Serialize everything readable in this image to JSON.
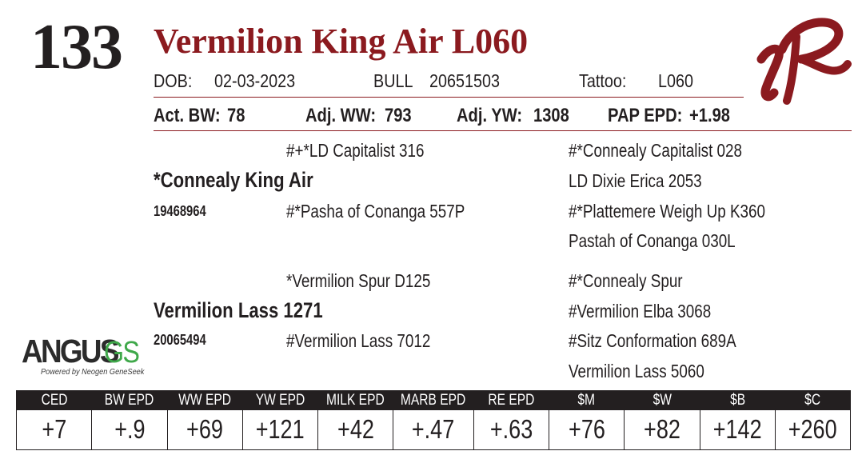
{
  "lot": "133",
  "name": "Vermilion King Air L060",
  "dob_label": "DOB:",
  "dob": "02-03-2023",
  "sex_label": "BULL",
  "registration": "20651503",
  "tattoo_label": "Tattoo:",
  "tattoo": "L060",
  "act_bw_label": "Act. BW:",
  "act_bw": "78",
  "adj_ww_label": "Adj. WW:",
  "adj_ww": "793",
  "adj_yw_label": "Adj. YW:",
  "adj_yw": "1308",
  "pap_label": "PAP EPD:",
  "pap": "+1.98",
  "pedigree": {
    "sire": {
      "name": "*Connealy King Air",
      "reg": "19468964",
      "sire": "#+*LD Capitalist 316",
      "dam": "#*Pasha of Conanga 557P",
      "sire_sire": "#*Connealy Capitalist 028",
      "sire_dam": "LD Dixie Erica 2053",
      "dam_sire": "#*Plattemere Weigh Up K360",
      "dam_dam": "Pastah of Conanga 030L"
    },
    "dam": {
      "name": "Vermilion Lass 1271",
      "reg": "20065494",
      "sire": "*Vermilion Spur D125",
      "dam": "#Vermilion Lass 7012",
      "sire_sire": "#*Connealy Spur",
      "sire_dam": "#Vermilion Elba 3068",
      "dam_sire": "#Sitz Conformation 689A",
      "dam_dam": "Vermilion Lass 5060"
    }
  },
  "angus_logo": {
    "word": "ANGUS",
    "suffix": "GS",
    "tagline": "Powered by Neogen GeneSeek"
  },
  "colors": {
    "brand_red": "#8b1a1f",
    "text": "#231f20",
    "angus_green": "#3fa84a"
  },
  "epd": [
    {
      "label": "CED",
      "value": "+7"
    },
    {
      "label": "BW EPD",
      "value": "+.9"
    },
    {
      "label": "WW EPD",
      "value": "+69"
    },
    {
      "label": "YW EPD",
      "value": "+121"
    },
    {
      "label": "MILK EPD",
      "value": "+42"
    },
    {
      "label": "MARB EPD",
      "value": "+.47"
    },
    {
      "label": "RE EPD",
      "value": "+.63"
    },
    {
      "label": "$M",
      "value": "+76"
    },
    {
      "label": "$W",
      "value": "+82"
    },
    {
      "label": "$B",
      "value": "+142"
    },
    {
      "label": "$C",
      "value": "+260"
    }
  ]
}
